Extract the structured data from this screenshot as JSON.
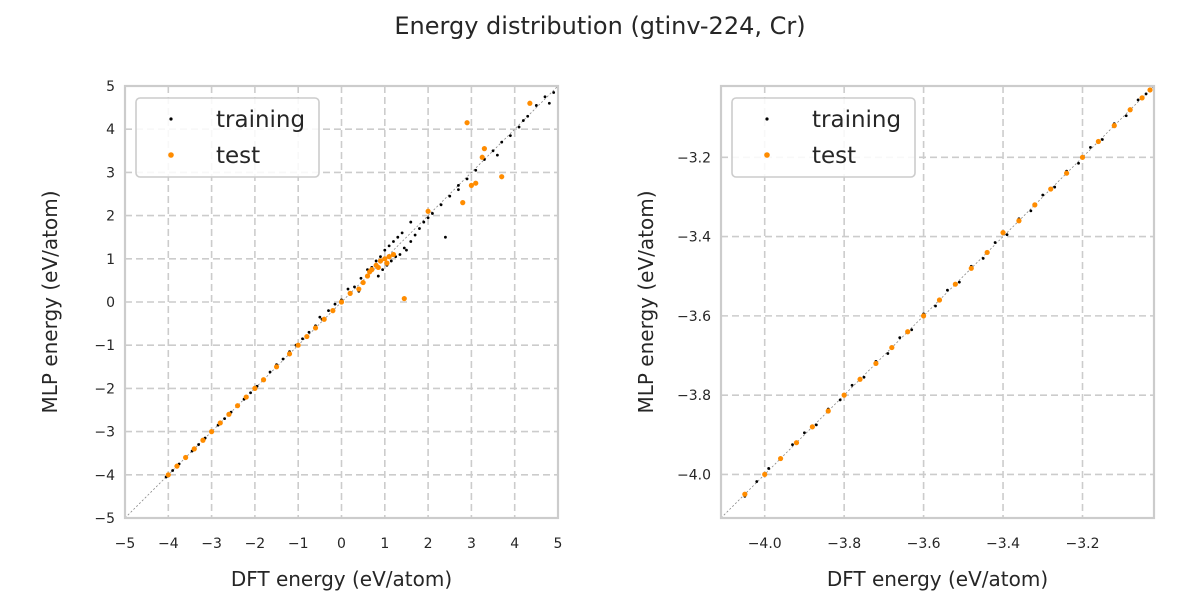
{
  "figure": {
    "title": "Energy distribution (gtinv-224, Cr)"
  },
  "colors": {
    "training": "#000000",
    "test": "#ff8c00",
    "grid": "#cccccc",
    "frame": "#cccccc"
  },
  "chart_data": [
    {
      "type": "scatter",
      "xlabel": "DFT energy (eV/atom)",
      "ylabel": "MLP energy (eV/atom)",
      "xlim": [
        -5,
        5
      ],
      "ylim": [
        -5,
        5
      ],
      "xticks": [
        -5,
        -4,
        -3,
        -2,
        -1,
        0,
        1,
        2,
        3,
        4,
        5
      ],
      "yticks": [
        -5,
        -4,
        -3,
        -2,
        -1,
        0,
        1,
        2,
        3,
        4,
        5
      ],
      "xtick_labels": [
        "−5",
        "−4",
        "−3",
        "−2",
        "−1",
        "0",
        "1",
        "2",
        "3",
        "4",
        "5"
      ],
      "ytick_labels": [
        "−5",
        "−4",
        "−3",
        "−2",
        "−1",
        "0",
        "1",
        "2",
        "3",
        "4",
        "5"
      ],
      "grid": true,
      "diagonal": true,
      "legend": {
        "position": "upper-left",
        "entries": [
          "training",
          "test"
        ]
      },
      "series": [
        {
          "name": "training",
          "color": "#000000",
          "x": [
            -4.05,
            -3.9,
            -3.75,
            -3.6,
            -3.45,
            -3.3,
            -3.15,
            -3.0,
            -2.85,
            -2.7,
            -2.55,
            -2.4,
            -2.25,
            -2.1,
            -1.95,
            -1.8,
            -1.65,
            -1.5,
            -1.35,
            -1.2,
            -1.05,
            -0.9,
            -0.75,
            -0.6,
            -0.45,
            -0.3,
            -0.15,
            0.0,
            0.15,
            0.3,
            0.45,
            0.6,
            0.7,
            0.8,
            0.9,
            1.0,
            1.1,
            1.2,
            1.3,
            1.4,
            0.85,
            0.95,
            1.05,
            1.15,
            1.25,
            1.35,
            1.45,
            1.5,
            1.6,
            1.7,
            1.8,
            1.9,
            2.0,
            2.1,
            2.3,
            2.5,
            2.7,
            2.9,
            3.1,
            3.3,
            3.5,
            3.7,
            3.9,
            4.1,
            4.3,
            4.5,
            4.7,
            4.9,
            -0.5,
            0.4,
            1.6,
            2.4,
            2.7,
            3.6,
            4.2,
            4.8
          ],
          "y": [
            -4.05,
            -3.9,
            -3.75,
            -3.6,
            -3.45,
            -3.3,
            -3.15,
            -3.0,
            -2.85,
            -2.7,
            -2.55,
            -2.4,
            -2.25,
            -2.1,
            -1.95,
            -1.8,
            -1.62,
            -1.45,
            -1.32,
            -1.15,
            -1.0,
            -0.85,
            -0.7,
            -0.55,
            -0.4,
            -0.2,
            -0.05,
            0.05,
            0.3,
            0.35,
            0.55,
            0.75,
            0.8,
            0.95,
            1.05,
            1.2,
            1.3,
            1.4,
            1.5,
            1.6,
            0.6,
            0.75,
            0.85,
            0.95,
            1.05,
            1.1,
            1.25,
            1.2,
            1.4,
            1.55,
            1.7,
            1.85,
            1.95,
            2.05,
            2.25,
            2.45,
            2.7,
            2.85,
            3.05,
            3.3,
            3.5,
            3.7,
            3.85,
            4.05,
            4.3,
            4.55,
            4.75,
            4.85,
            -0.35,
            0.25,
            1.85,
            1.5,
            2.6,
            3.4,
            4.2,
            4.6
          ]
        },
        {
          "name": "test",
          "color": "#ff8c00",
          "x": [
            -4.0,
            -3.8,
            -3.6,
            -3.4,
            -3.2,
            -3.0,
            -2.8,
            -2.6,
            -2.4,
            -2.2,
            -2.0,
            -1.8,
            -1.5,
            -1.2,
            -1.0,
            -0.8,
            -0.6,
            -0.4,
            -0.2,
            0.0,
            0.2,
            0.4,
            0.5,
            0.6,
            0.7,
            0.8,
            0.9,
            1.0,
            1.1,
            1.2,
            0.65,
            0.85,
            1.05,
            1.45,
            2.0,
            2.8,
            2.9,
            3.0,
            3.1,
            3.25,
            3.3,
            3.7,
            4.35
          ],
          "y": [
            -4.0,
            -3.8,
            -3.6,
            -3.4,
            -3.2,
            -3.0,
            -2.8,
            -2.6,
            -2.4,
            -2.2,
            -2.0,
            -1.8,
            -1.5,
            -1.2,
            -1.0,
            -0.8,
            -0.6,
            -0.4,
            -0.2,
            0.0,
            0.2,
            0.3,
            0.45,
            0.6,
            0.75,
            0.85,
            0.95,
            1.0,
            1.05,
            1.1,
            0.7,
            0.8,
            0.9,
            0.08,
            2.1,
            2.3,
            4.15,
            2.7,
            2.75,
            3.35,
            3.55,
            2.9,
            4.6
          ]
        }
      ]
    },
    {
      "type": "scatter",
      "xlabel": "DFT energy (eV/atom)",
      "ylabel": "MLP energy (eV/atom)",
      "xlim": [
        -4.11,
        -3.02
      ],
      "ylim": [
        -4.11,
        -3.02
      ],
      "xticks": [
        -4.0,
        -3.8,
        -3.6,
        -3.4,
        -3.2
      ],
      "yticks": [
        -4.0,
        -3.8,
        -3.6,
        -3.4,
        -3.2
      ],
      "xtick_labels": [
        "−4.0",
        "−3.8",
        "−3.6",
        "−3.4",
        "−3.2"
      ],
      "ytick_labels": [
        "−4.0",
        "−3.8",
        "−3.6",
        "−3.4",
        "−3.2"
      ],
      "grid": true,
      "diagonal": true,
      "legend": {
        "position": "upper-left",
        "entries": [
          "training",
          "test"
        ]
      },
      "series": [
        {
          "name": "training",
          "color": "#000000",
          "x": [
            -4.05,
            -4.02,
            -3.99,
            -3.96,
            -3.93,
            -3.9,
            -3.87,
            -3.84,
            -3.81,
            -3.78,
            -3.75,
            -3.72,
            -3.69,
            -3.66,
            -3.63,
            -3.6,
            -3.57,
            -3.54,
            -3.51,
            -3.48,
            -3.45,
            -3.42,
            -3.39,
            -3.36,
            -3.33,
            -3.3,
            -3.27,
            -3.24,
            -3.21,
            -3.18,
            -3.15,
            -3.12,
            -3.09,
            -3.06,
            -3.04
          ],
          "y": [
            -4.055,
            -4.018,
            -3.985,
            -3.958,
            -3.925,
            -3.895,
            -3.875,
            -3.835,
            -3.812,
            -3.775,
            -3.755,
            -3.715,
            -3.695,
            -3.655,
            -3.635,
            -3.595,
            -3.575,
            -3.535,
            -3.515,
            -3.475,
            -3.455,
            -3.415,
            -3.395,
            -3.355,
            -3.335,
            -3.295,
            -3.275,
            -3.235,
            -3.215,
            -3.175,
            -3.155,
            -3.115,
            -3.095,
            -3.055,
            -3.04
          ]
        },
        {
          "name": "test",
          "color": "#ff8c00",
          "x": [
            -4.05,
            -4.0,
            -3.96,
            -3.92,
            -3.88,
            -3.84,
            -3.8,
            -3.76,
            -3.72,
            -3.68,
            -3.64,
            -3.6,
            -3.56,
            -3.52,
            -3.48,
            -3.44,
            -3.4,
            -3.36,
            -3.32,
            -3.28,
            -3.24,
            -3.2,
            -3.16,
            -3.12,
            -3.08,
            -3.05,
            -3.03
          ],
          "y": [
            -4.05,
            -4.0,
            -3.96,
            -3.92,
            -3.88,
            -3.84,
            -3.8,
            -3.76,
            -3.72,
            -3.68,
            -3.64,
            -3.6,
            -3.56,
            -3.52,
            -3.48,
            -3.44,
            -3.39,
            -3.36,
            -3.32,
            -3.28,
            -3.24,
            -3.2,
            -3.16,
            -3.12,
            -3.08,
            -3.05,
            -3.03
          ]
        }
      ]
    }
  ]
}
